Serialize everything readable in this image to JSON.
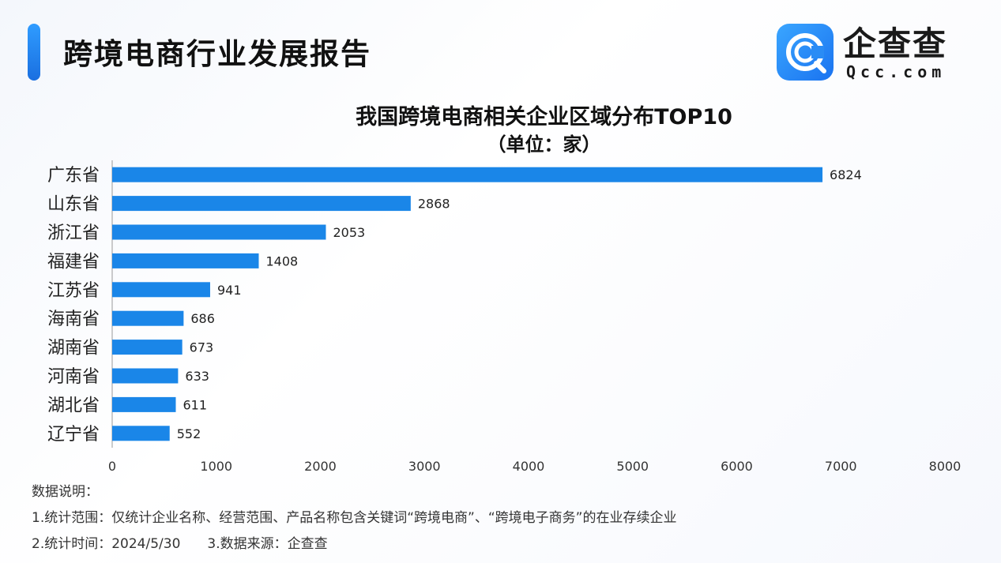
{
  "header": {
    "title": "跨境电商行业发展报告"
  },
  "logo": {
    "name": "企查查",
    "domain": "Qcc.com"
  },
  "colors": {
    "accent": "#1a86e8",
    "bar": "#1a86e8",
    "axis": "#999999"
  },
  "chart_data": {
    "type": "bar",
    "orientation": "horizontal",
    "title": "我国跨境电商相关企业区域分布TOP10",
    "subtitle": "（单位：家）",
    "categories": [
      "广东省",
      "山东省",
      "浙江省",
      "福建省",
      "江苏省",
      "海南省",
      "湖南省",
      "河南省",
      "湖北省",
      "辽宁省"
    ],
    "values": [
      6824,
      2868,
      2053,
      1408,
      941,
      686,
      673,
      633,
      611,
      552
    ],
    "xlim": [
      0,
      8000
    ],
    "xticks": [
      0,
      1000,
      2000,
      3000,
      4000,
      5000,
      6000,
      7000,
      8000
    ],
    "grid": false,
    "data_labels": true
  },
  "notes": {
    "heading": "数据说明：",
    "line1": "1.统计范围：仅统计企业名称、经营范围、产品名称包含关键词“跨境电商”、“跨境电子商务”的在业存续企业",
    "line2": "2.统计时间：2024/5/30　　3.数据来源：企查查"
  }
}
